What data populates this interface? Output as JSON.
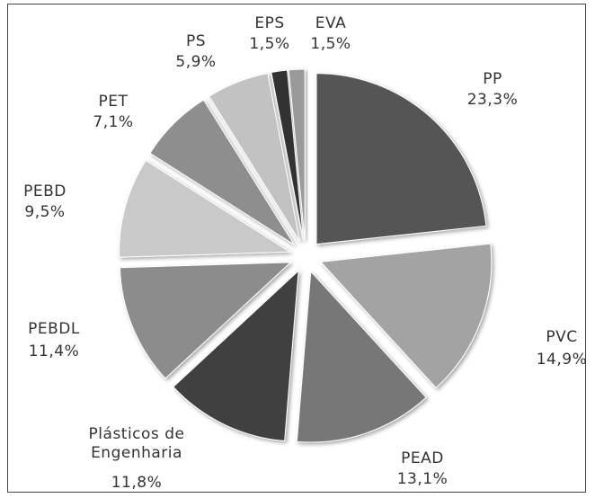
{
  "chart_data": {
    "type": "pie",
    "categories": [
      "PP",
      "PVC",
      "PEAD",
      "Plásticos de Engenharia",
      "PEBDL",
      "PEBD",
      "PET",
      "PS",
      "EPS",
      "EVA"
    ],
    "values": [
      23.3,
      14.9,
      13.1,
      11.8,
      11.4,
      9.5,
      7.1,
      5.9,
      1.5,
      1.5
    ],
    "value_labels": [
      "23,3%",
      "14,9%",
      "13,1%",
      "11,8%",
      "11,4%",
      "9,5%",
      "7,1%",
      "5,9%",
      "1,5%",
      "1,5%"
    ],
    "colors": [
      "#555555",
      "#a3a3a3",
      "#777777",
      "#414141",
      "#8c8c8c",
      "#c9c9c9",
      "#8e8e8e",
      "#c2c2c2",
      "#333333",
      "#9a9a9a"
    ]
  }
}
